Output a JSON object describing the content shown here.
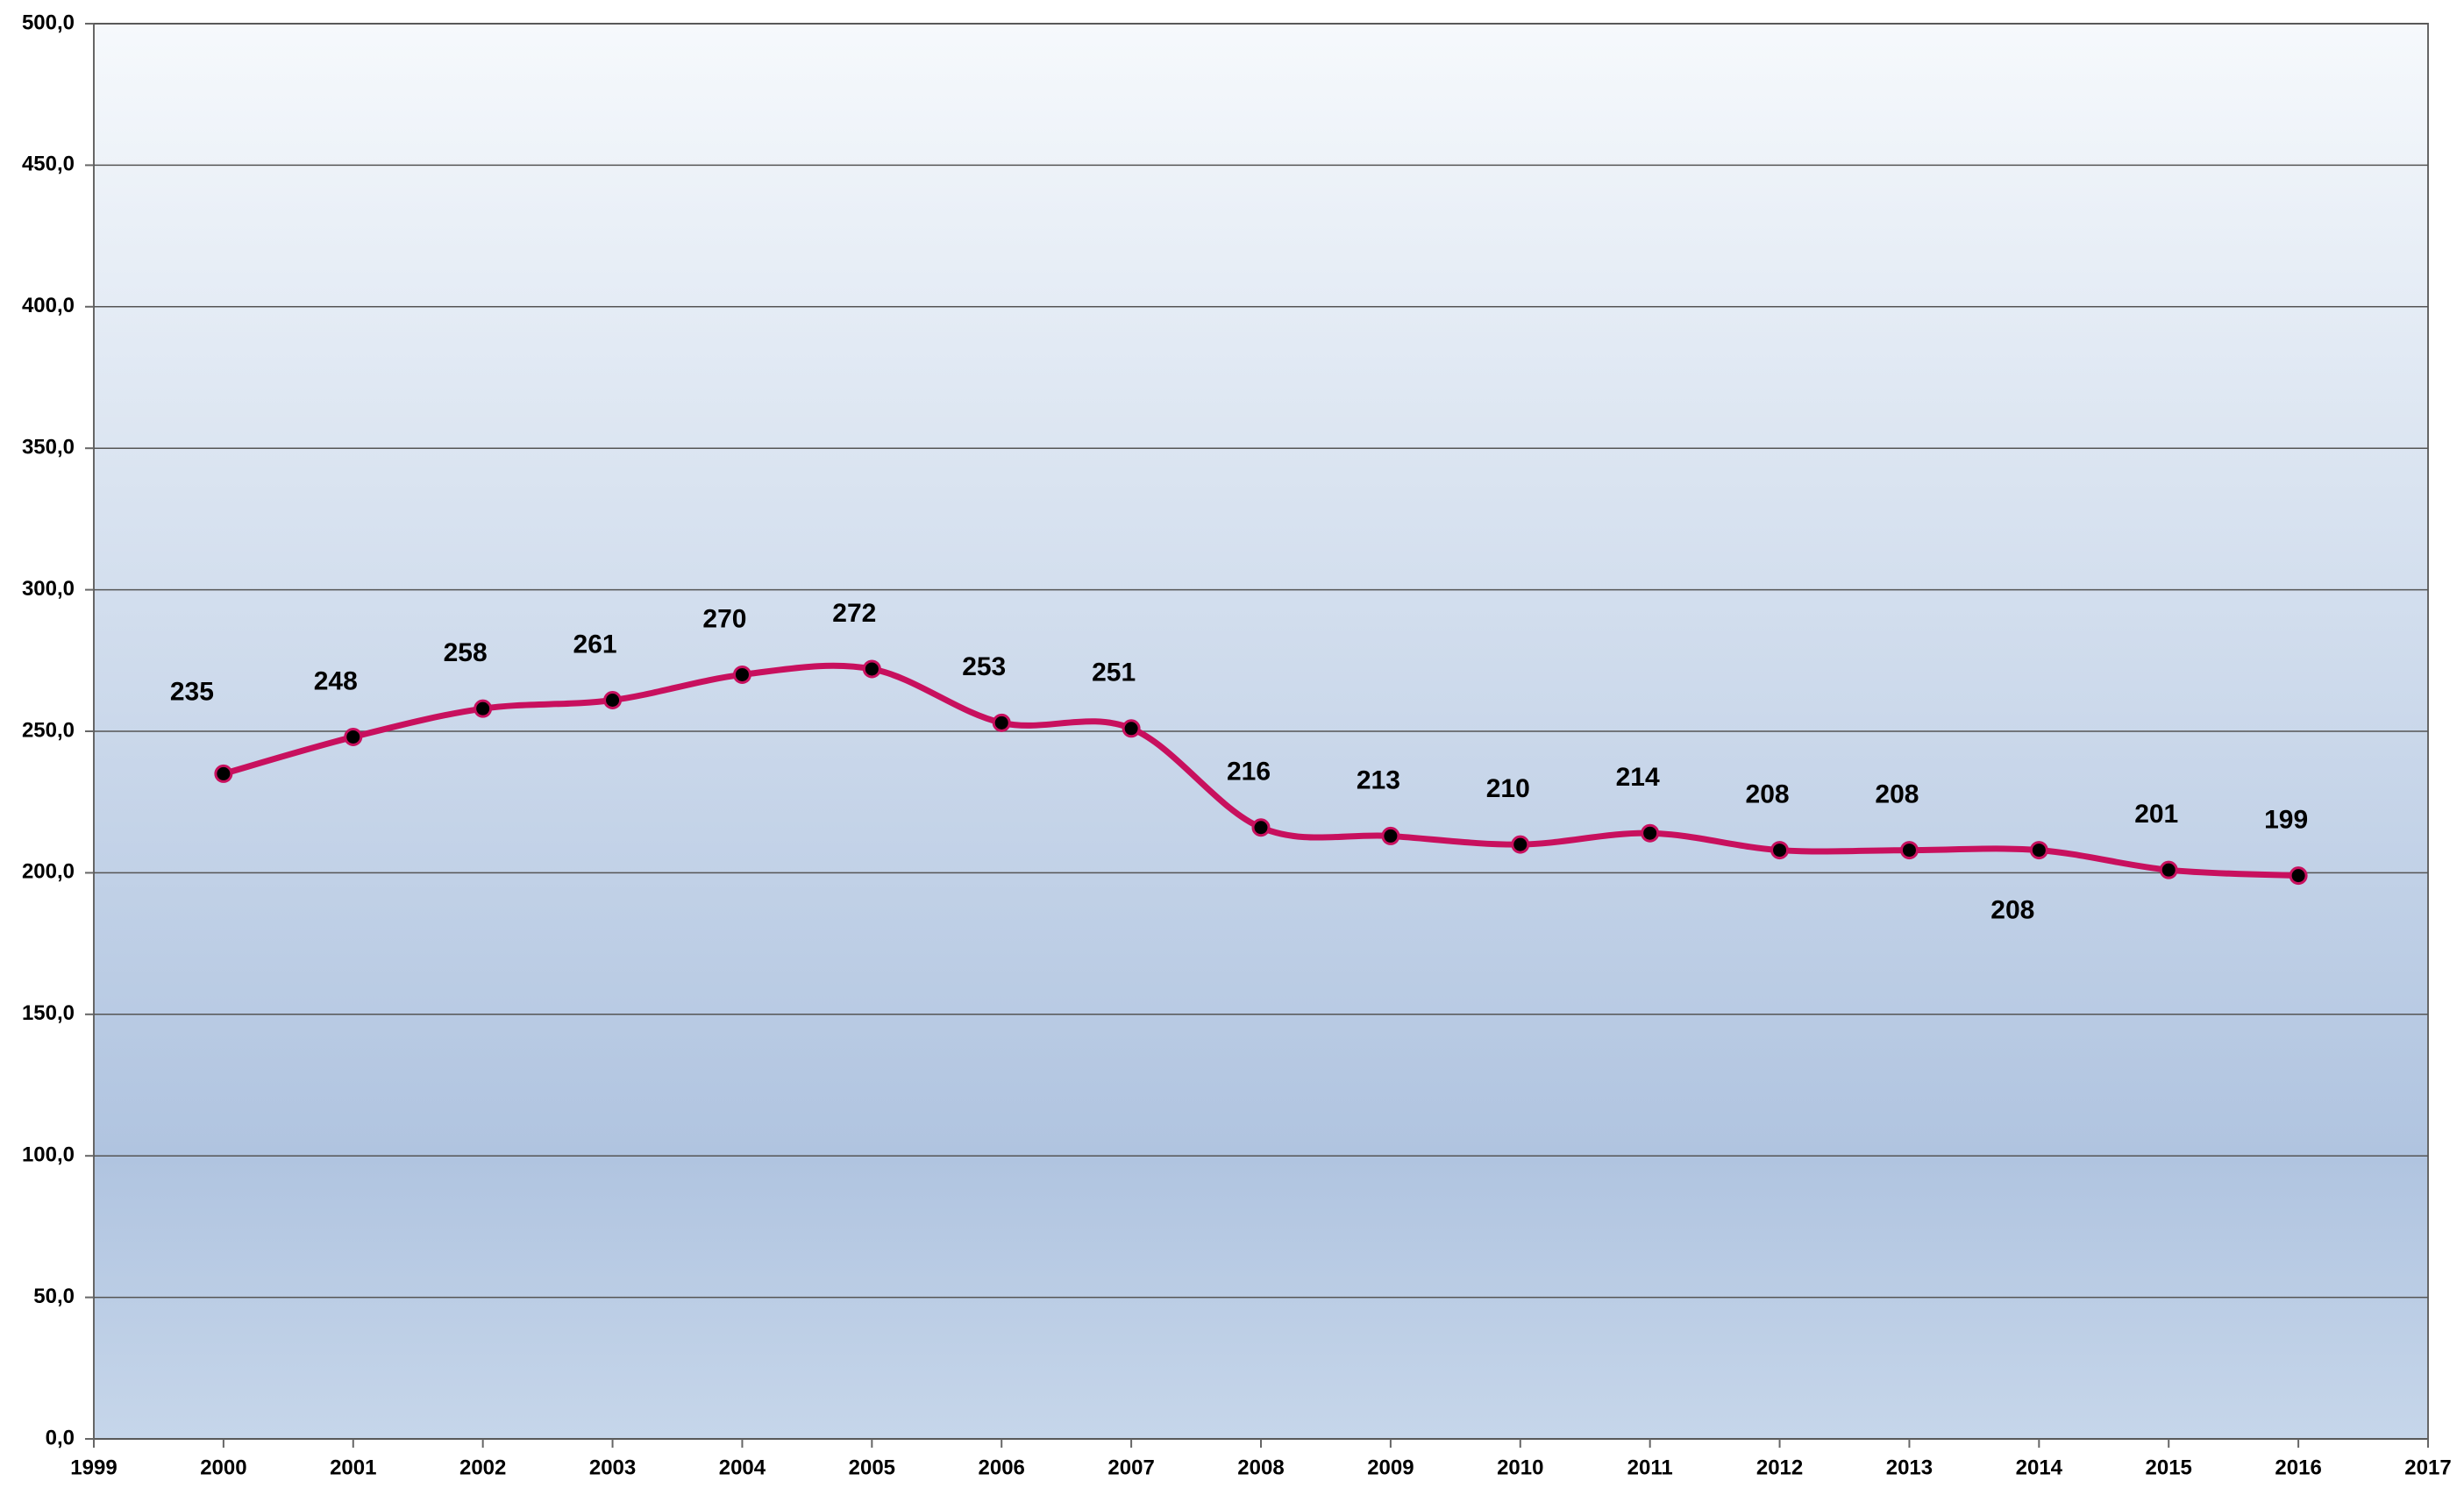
{
  "chart_data": {
    "type": "line",
    "x": [
      2000,
      2001,
      2002,
      2003,
      2004,
      2005,
      2006,
      2007,
      2008,
      2009,
      2010,
      2011,
      2012,
      2013,
      2014,
      2015,
      2016
    ],
    "series": [
      {
        "color": "#c8105e",
        "values": [
          235,
          248,
          258,
          261,
          270,
          272,
          253,
          251,
          216,
          213,
          210,
          214,
          208,
          208,
          208,
          201,
          199
        ]
      }
    ],
    "xlim": [
      1999,
      2017
    ],
    "xticks": [
      1999,
      2000,
      2001,
      2002,
      2003,
      2004,
      2005,
      2006,
      2007,
      2008,
      2009,
      2010,
      2011,
      2012,
      2013,
      2014,
      2015,
      2016,
      2017
    ],
    "ylim": [
      0,
      500
    ],
    "yticks": [
      {
        "value": 0,
        "label": "0,0"
      },
      {
        "value": 50,
        "label": "50,0"
      },
      {
        "value": 100,
        "label": "100,0"
      },
      {
        "value": 150,
        "label": "150,0"
      },
      {
        "value": 200,
        "label": "200,0"
      },
      {
        "value": 250,
        "label": "250,0"
      },
      {
        "value": 300,
        "label": "300,0"
      },
      {
        "value": 350,
        "label": "350,0"
      },
      {
        "value": 400,
        "label": "400,0"
      },
      {
        "value": 450,
        "label": "450,0"
      },
      {
        "value": 500,
        "label": "500,0"
      }
    ],
    "grid": true,
    "smooth": true,
    "marker_color": "#000000"
  }
}
